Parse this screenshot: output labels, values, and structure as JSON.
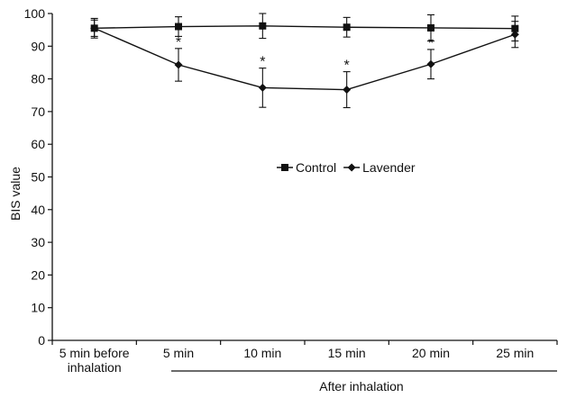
{
  "chart_data": {
    "type": "line",
    "ylabel": "BIS value",
    "xlabel": "After inhalation",
    "ylim": [
      0,
      100
    ],
    "yticks": [
      0,
      10,
      20,
      30,
      40,
      50,
      60,
      70,
      80,
      90,
      100
    ],
    "categories": [
      "5 min before inhalation",
      "5 min",
      "10 min",
      "15 min",
      "20 min",
      "25 min"
    ],
    "series": [
      {
        "name": "Control",
        "marker": "square",
        "values": [
          95.5,
          96.0,
          96.2,
          95.8,
          95.6,
          95.4
        ],
        "errors": [
          3.0,
          3.0,
          3.8,
          3.0,
          4.0,
          3.8
        ]
      },
      {
        "name": "Lavender",
        "marker": "diamond",
        "values": [
          95.5,
          84.3,
          77.3,
          76.7,
          84.5,
          93.6
        ],
        "errors": [
          2.5,
          5.0,
          6.0,
          5.5,
          4.5,
          4.0
        ],
        "significance": [
          "",
          "*",
          "*",
          "*",
          "*",
          ""
        ]
      }
    ],
    "legend_position": "center",
    "grid": false
  }
}
